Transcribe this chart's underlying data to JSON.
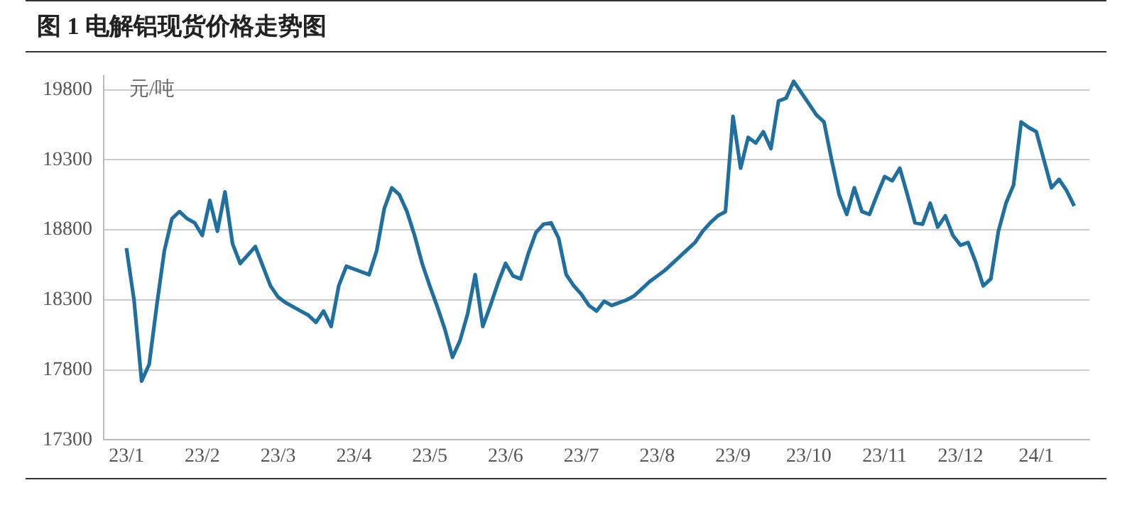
{
  "chart_data": {
    "type": "line",
    "title": "图 1 电解铝现货价格走势图",
    "ylabel": "元/吨",
    "categories": [
      "23/1",
      null,
      null,
      null,
      null,
      null,
      null,
      null,
      null,
      null,
      "23/2",
      null,
      null,
      null,
      null,
      null,
      null,
      null,
      null,
      null,
      "23/3",
      null,
      null,
      null,
      null,
      null,
      null,
      null,
      null,
      null,
      "23/4",
      null,
      null,
      null,
      null,
      null,
      null,
      null,
      null,
      null,
      "23/5",
      null,
      null,
      null,
      null,
      null,
      null,
      null,
      null,
      null,
      "23/6",
      null,
      null,
      null,
      null,
      null,
      null,
      null,
      null,
      null,
      "23/7",
      null,
      null,
      null,
      null,
      null,
      null,
      null,
      null,
      null,
      "23/8",
      null,
      null,
      null,
      null,
      null,
      null,
      null,
      null,
      null,
      "23/9",
      null,
      null,
      null,
      null,
      null,
      null,
      null,
      null,
      null,
      "23/10",
      null,
      null,
      null,
      null,
      null,
      null,
      null,
      null,
      null,
      "23/11",
      null,
      null,
      null,
      null,
      null,
      null,
      null,
      null,
      null,
      "23/12",
      null,
      null,
      null,
      null,
      null,
      null,
      null,
      null,
      null,
      "24/1",
      null,
      null,
      null,
      null,
      null
    ],
    "series": [
      {
        "color": "#1f6f9f",
        "values": [
          18670,
          18300,
          17720,
          17840,
          18260,
          18650,
          18880,
          18930,
          18880,
          18850,
          18760,
          19010,
          18790,
          19070,
          18700,
          18560,
          18620,
          18680,
          18540,
          18400,
          18320,
          18280,
          18250,
          18220,
          18190,
          18140,
          18220,
          18110,
          18400,
          18540,
          18520,
          18500,
          18480,
          18650,
          18950,
          19100,
          19050,
          18930,
          18760,
          18560,
          18400,
          18250,
          18090,
          17890,
          18010,
          18200,
          18480,
          18110,
          18260,
          18420,
          18560,
          18470,
          18450,
          18630,
          18780,
          18840,
          18850,
          18740,
          18480,
          18400,
          18340,
          18260,
          18220,
          18290,
          18260,
          18280,
          18300,
          18330,
          18380,
          18430,
          18470,
          18510,
          18560,
          18610,
          18660,
          18710,
          18790,
          18850,
          18900,
          18930,
          19610,
          19240,
          19460,
          19420,
          19500,
          19380,
          19720,
          19740,
          19860,
          19780,
          19700,
          19620,
          19570,
          19300,
          19050,
          18910,
          19100,
          18930,
          18910,
          19050,
          19180,
          19150,
          19240,
          19050,
          18850,
          18840,
          18990,
          18820,
          18900,
          18760,
          18690,
          18710,
          18570,
          18400,
          18450,
          18790,
          18990,
          19120,
          19570,
          19530,
          19500,
          19300,
          19100,
          19160,
          19080,
          18970
        ]
      }
    ],
    "ylim": [
      17300,
      19900
    ],
    "yticks": [
      17300,
      17800,
      18300,
      18800,
      19300,
      19800
    ],
    "grid": "y",
    "legend": false,
    "marker": "none",
    "line_style": "solid"
  }
}
